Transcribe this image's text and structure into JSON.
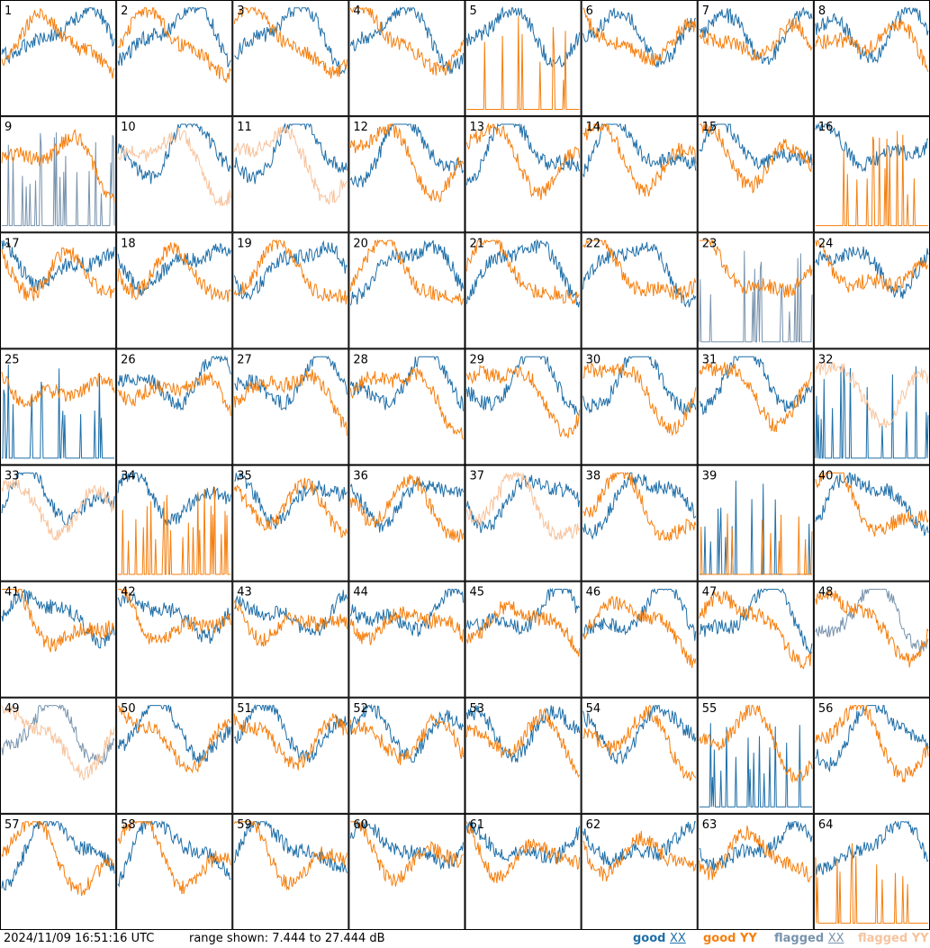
{
  "chart_data": {
    "type": "line",
    "grid": {
      "rows": 8,
      "cols": 8
    },
    "panel_labels": [
      "1",
      "2",
      "3",
      "4",
      "5",
      "6",
      "7",
      "8",
      "9",
      "10",
      "11",
      "12",
      "13",
      "14",
      "15",
      "16",
      "17",
      "18",
      "19",
      "20",
      "21",
      "22",
      "23",
      "24",
      "25",
      "26",
      "27",
      "28",
      "29",
      "30",
      "31",
      "32",
      "33",
      "34",
      "35",
      "36",
      "37",
      "38",
      "39",
      "40",
      "41",
      "42",
      "43",
      "44",
      "45",
      "46",
      "47",
      "48",
      "49",
      "50",
      "51",
      "52",
      "53",
      "54",
      "55",
      "56",
      "57",
      "58",
      "59",
      "60",
      "61",
      "62",
      "63",
      "64"
    ],
    "ylim": [
      7.444,
      27.444
    ],
    "series": [
      {
        "name": "good XX",
        "color": "#1f6fa8"
      },
      {
        "name": "good YY",
        "color": "#f57f0e"
      },
      {
        "name": "flagged XX",
        "color": "#7893ad"
      },
      {
        "name": "flagged YY",
        "color": "#f7c39c"
      }
    ],
    "panel_status": {
      "flagged_xx": [
        "9",
        "23",
        "48",
        "49"
      ],
      "flagged_yy": [
        "10",
        "11",
        "32",
        "33",
        "37",
        "49"
      ],
      "spiky_xx": [
        "9",
        "23",
        "25",
        "32",
        "39",
        "55"
      ],
      "spiky_yy": [
        "5",
        "16",
        "34",
        "39",
        "64"
      ]
    }
  },
  "footer": {
    "timestamp": "2024/11/09 16:51:16 UTC",
    "range_text": "range shown: 7.444 to 27.444 dB"
  },
  "legend": {
    "good_label": "good",
    "flagged_label": "flagged",
    "xx": "XX",
    "yy": "YY"
  }
}
